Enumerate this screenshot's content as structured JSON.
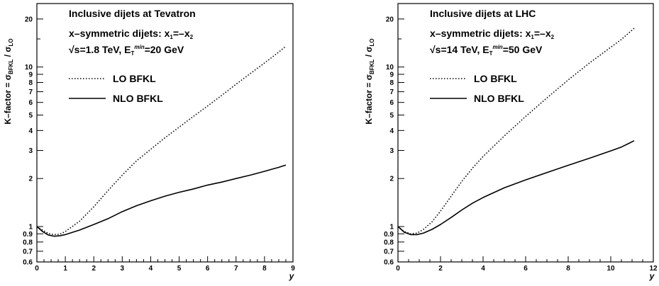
{
  "chart_data": [
    {
      "type": "line",
      "yscale": "log",
      "annotations": [
        "Inclusive dijets at Tevatron",
        "x–symmetric dijets: x₁=–x₂",
        "√s=1.8 TeV,   E_T^min=20 GeV"
      ],
      "ann_parts": {
        "title": "Inclusive dijets at Tevatron",
        "sym_main": "x–symmetric dijets: x",
        "sym_eq": "=–x",
        "sym_sub1": "1",
        "sym_sub2": "2",
        "energy_sqrt": "√s=1.8 TeV,   E",
        "energy_sub": "T",
        "energy_sup": "min",
        "energy_rest": "=20 GeV"
      },
      "xlabel": "y",
      "ylabel_main": "K–factor = σ",
      "ylabel_sub1": "BFKL",
      "ylabel_mid": " / σ",
      "ylabel_sub2": "LO",
      "xlim": [
        0,
        9
      ],
      "ylim": [
        0.6,
        25
      ],
      "xticks": [
        "0",
        "1",
        "2",
        "3",
        "4",
        "5",
        "6",
        "7",
        "8",
        "9"
      ],
      "yticks": [
        "0.6",
        "0.7",
        "0.8",
        "0.9",
        "1",
        "2",
        "3",
        "4",
        "5",
        "6",
        "7",
        "8",
        "9",
        "10",
        "20"
      ],
      "legend": [
        "LO BFKL",
        "NLO BFKL"
      ],
      "series": [
        {
          "name": "LO BFKL",
          "style": "dotted",
          "x": [
            0,
            0.2,
            0.4,
            0.6,
            0.8,
            1.0,
            1.5,
            2.0,
            2.5,
            3.0,
            3.5,
            4.0,
            4.5,
            5.0,
            5.5,
            6.0,
            6.5,
            7.0,
            7.5,
            8.0,
            8.5,
            8.75
          ],
          "y": [
            1.0,
            0.95,
            0.905,
            0.89,
            0.895,
            0.93,
            1.08,
            1.33,
            1.68,
            2.1,
            2.58,
            3.05,
            3.6,
            4.2,
            4.9,
            5.7,
            6.65,
            7.8,
            9.1,
            10.6,
            12.4,
            13.5
          ]
        },
        {
          "name": "NLO BFKL",
          "style": "solid",
          "x": [
            0,
            0.2,
            0.4,
            0.6,
            0.8,
            1.0,
            1.5,
            2.0,
            2.5,
            3.0,
            3.5,
            4.0,
            4.5,
            5.0,
            5.5,
            6.0,
            6.5,
            7.0,
            7.5,
            8.0,
            8.5,
            8.75
          ],
          "y": [
            1.0,
            0.93,
            0.885,
            0.87,
            0.875,
            0.89,
            0.95,
            1.03,
            1.12,
            1.24,
            1.35,
            1.45,
            1.55,
            1.64,
            1.72,
            1.82,
            1.9,
            2.0,
            2.1,
            2.22,
            2.35,
            2.43
          ]
        }
      ]
    },
    {
      "type": "line",
      "yscale": "log",
      "annotations": [
        "Inclusive dijets at LHC",
        "x–symmetric dijets: x₁=–x₂",
        "√s=14 TeV,   E_T^min=50 GeV"
      ],
      "ann_parts": {
        "title": "Inclusive dijets at LHC",
        "sym_main": "x–symmetric dijets: x",
        "sym_eq": "=–x",
        "sym_sub1": "1",
        "sym_sub2": "2",
        "energy_sqrt": "√s=14 TeV,   E",
        "energy_sub": "T",
        "energy_sup": "min",
        "energy_rest": "=50 GeV"
      },
      "xlabel": "y",
      "ylabel_main": "K–factor = σ",
      "ylabel_sub1": "BFKL",
      "ylabel_mid": " / σ",
      "ylabel_sub2": "LO",
      "xlim": [
        0,
        12
      ],
      "ylim": [
        0.6,
        25
      ],
      "xticks": [
        "0",
        "2",
        "4",
        "6",
        "8",
        "10",
        "12"
      ],
      "yticks": [
        "0.6",
        "0.7",
        "0.8",
        "0.9",
        "1",
        "2",
        "3",
        "4",
        "5",
        "6",
        "7",
        "8",
        "9",
        "10",
        "20"
      ],
      "legend": [
        "LO BFKL",
        "NLO BFKL"
      ],
      "series": [
        {
          "name": "LO BFKL",
          "style": "dotted",
          "x": [
            0,
            0.3,
            0.6,
            0.9,
            1.2,
            1.6,
            2.0,
            2.5,
            3.0,
            3.5,
            4.0,
            5.0,
            6.0,
            7.0,
            8.0,
            9.0,
            10.0,
            10.5,
            11.1
          ],
          "y": [
            1.0,
            0.93,
            0.9,
            0.91,
            0.96,
            1.07,
            1.25,
            1.55,
            1.92,
            2.32,
            2.75,
            3.7,
            4.9,
            6.4,
            8.3,
            10.6,
            13.3,
            14.9,
            17.5
          ]
        },
        {
          "name": "NLO BFKL",
          "style": "solid",
          "x": [
            0,
            0.3,
            0.6,
            0.9,
            1.2,
            1.6,
            2.0,
            2.5,
            3.0,
            3.5,
            4.0,
            5.0,
            6.0,
            7.0,
            8.0,
            9.0,
            10.0,
            10.5,
            11.1
          ],
          "y": [
            1.0,
            0.92,
            0.89,
            0.89,
            0.91,
            0.96,
            1.03,
            1.14,
            1.27,
            1.4,
            1.52,
            1.75,
            1.96,
            2.18,
            2.42,
            2.68,
            2.98,
            3.15,
            3.45
          ]
        }
      ]
    }
  ]
}
